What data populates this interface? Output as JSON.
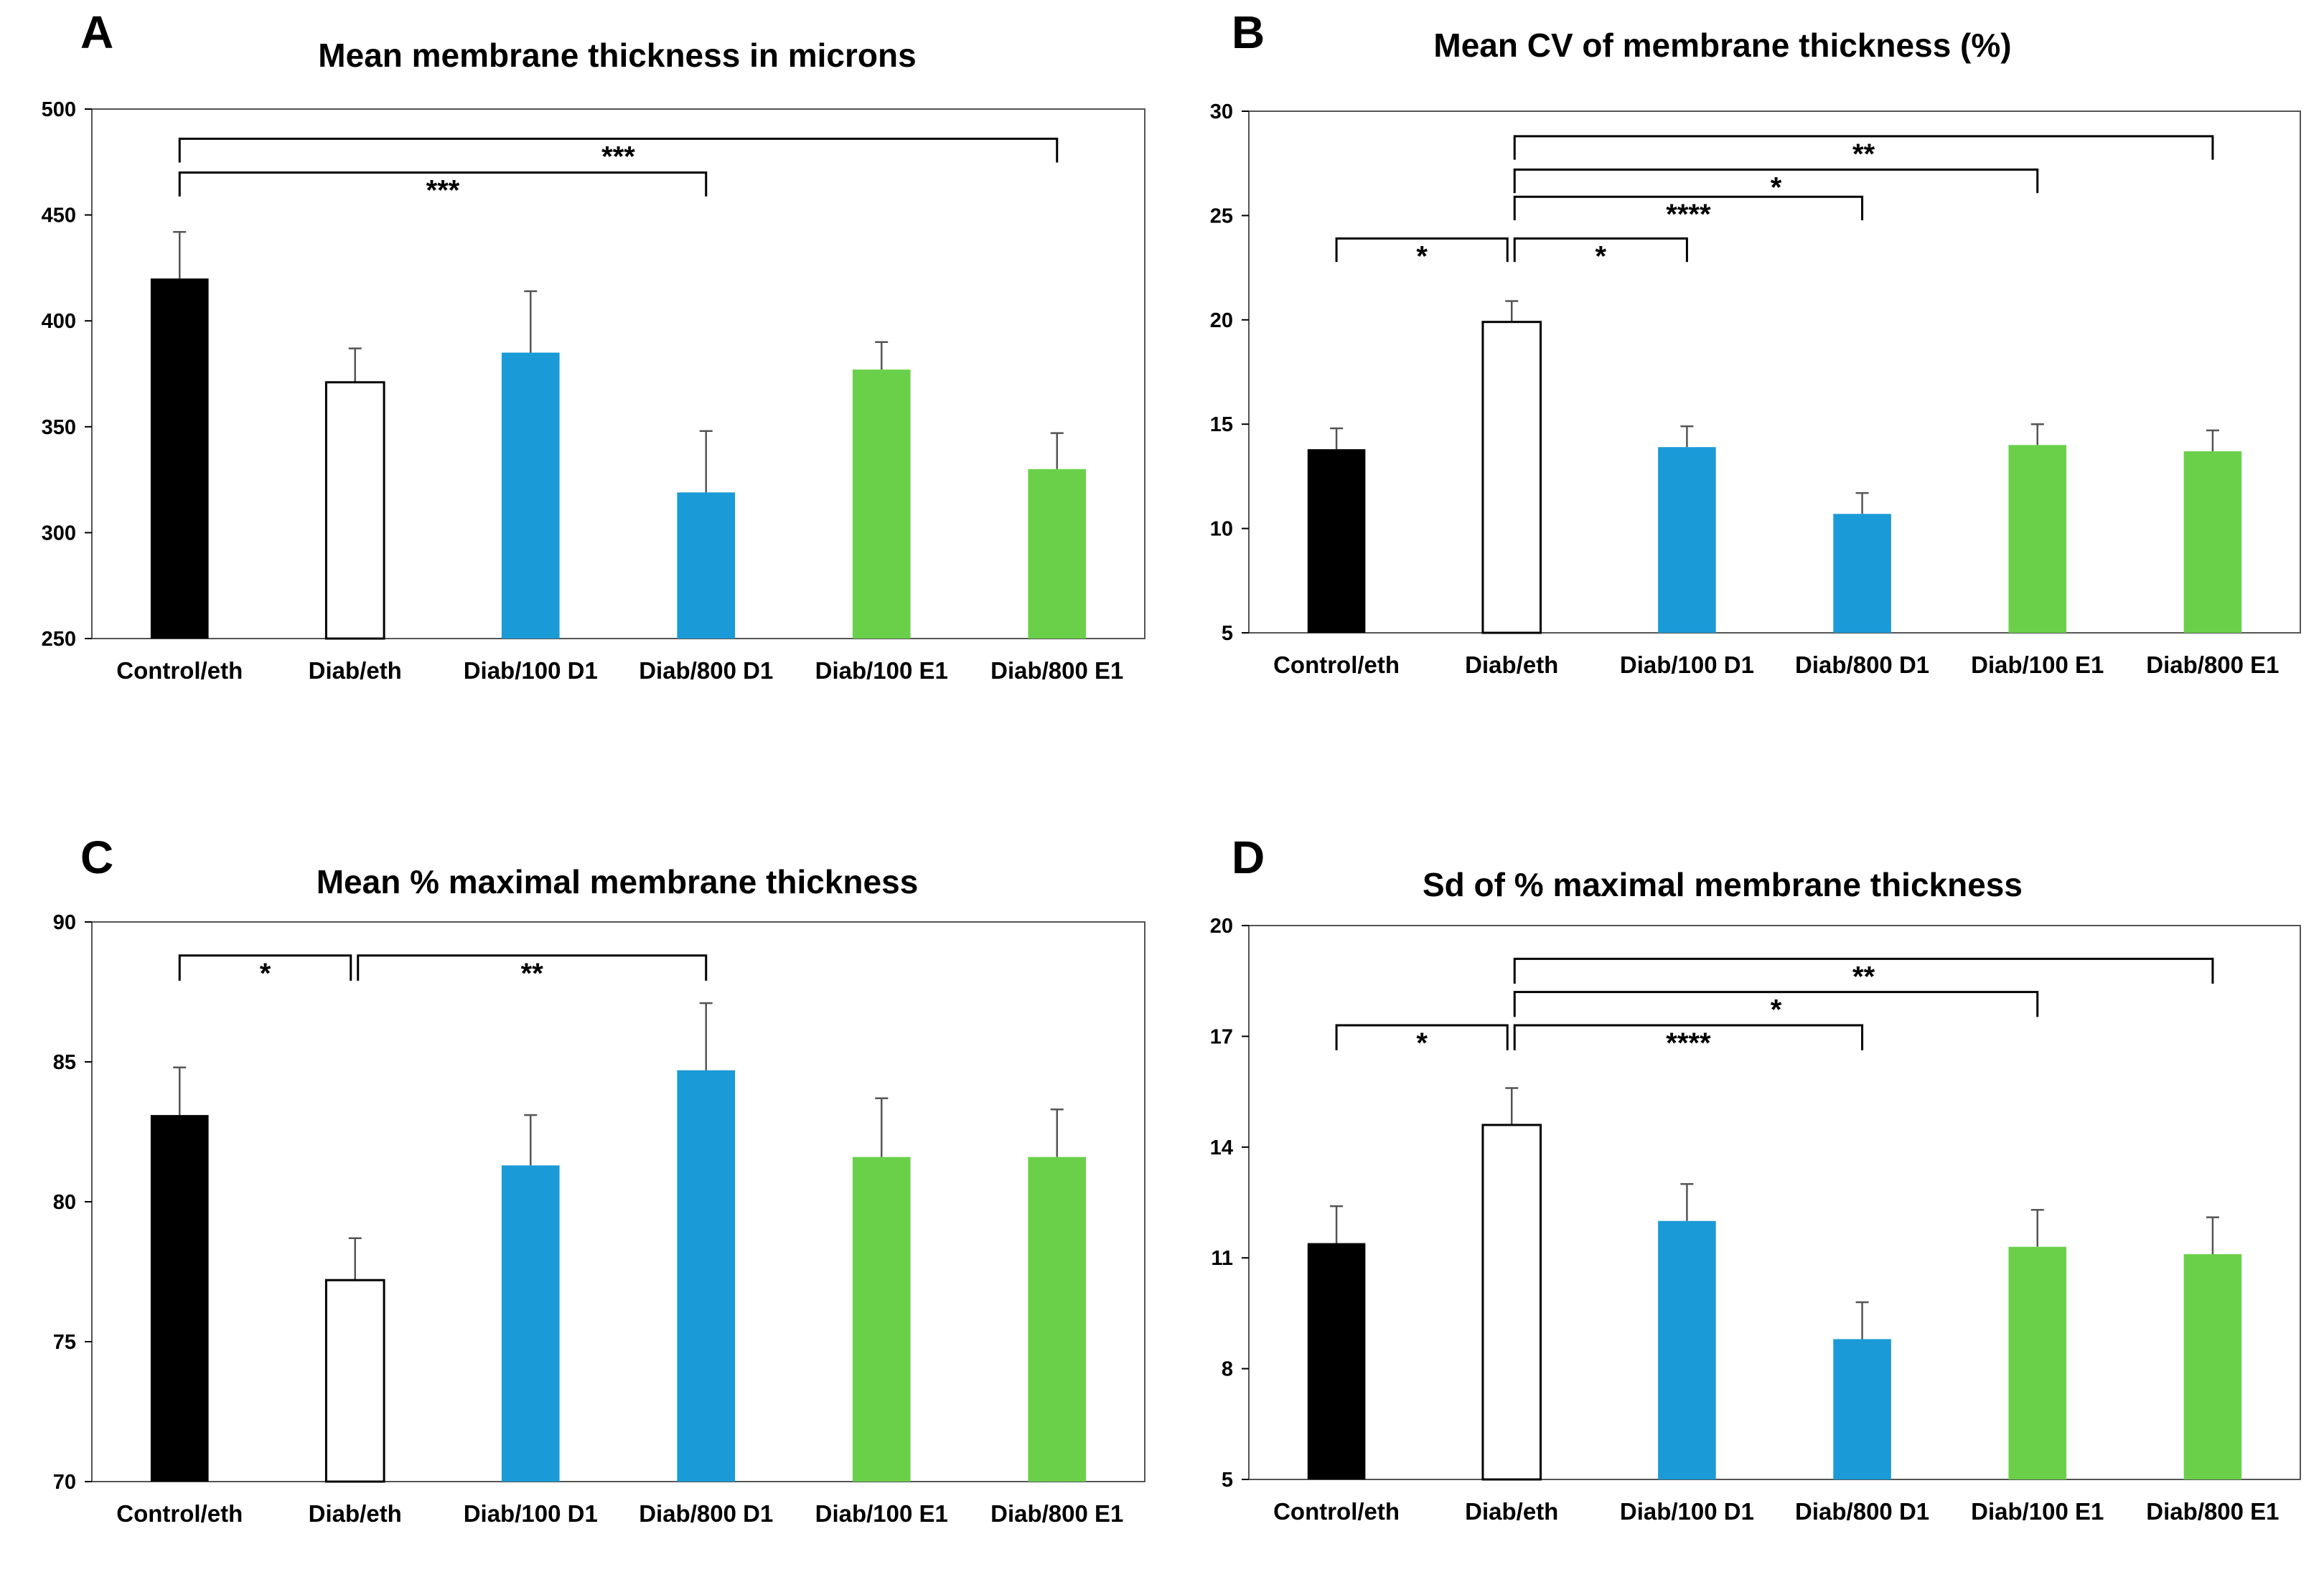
{
  "colors": {
    "control": "#000000",
    "diab": "#ffffff",
    "d1": "#1a9bd7",
    "e1": "#6ad04a",
    "axis": "#000000",
    "error_bar": "#555555"
  },
  "chart_data": [
    {
      "type": "bar",
      "panel": "A",
      "title": "Mean membrane thickness in microns",
      "categories": [
        "Control/eth",
        "Diab/eth",
        "Diab/100 D1",
        "Diab/800 D1",
        "Diab/100 E1",
        "Diab/800 E1"
      ],
      "values": [
        420,
        371,
        385,
        319,
        377,
        330
      ],
      "errors": [
        22,
        16,
        29,
        29,
        13,
        17
      ],
      "bar_colors": [
        "control",
        "diab",
        "d1",
        "d1",
        "e1",
        "e1"
      ],
      "ylim": [
        250,
        500
      ],
      "yticks": [
        250,
        300,
        350,
        400,
        450,
        500
      ],
      "xlabel": "",
      "ylabel": "",
      "significance": [
        {
          "from": 0,
          "to": 5,
          "label": "***",
          "level": 486
        },
        {
          "from": 0,
          "to": 3,
          "label": "***",
          "level": 470
        }
      ]
    },
    {
      "type": "bar",
      "panel": "B",
      "title": "Mean CV of membrane thickness (%)",
      "categories": [
        "Control/eth",
        "Diab/eth",
        "Diab/100 D1",
        "Diab/800 D1",
        "Diab/100 E1",
        "Diab/800 E1"
      ],
      "values": [
        13.8,
        19.9,
        13.9,
        10.7,
        14.0,
        13.7
      ],
      "errors": [
        1.0,
        1.0,
        1.0,
        1.0,
        1.0,
        1.0
      ],
      "bar_colors": [
        "control",
        "diab",
        "d1",
        "d1",
        "e1",
        "e1"
      ],
      "ylim": [
        5,
        30
      ],
      "yticks": [
        5,
        10,
        15,
        20,
        25,
        30
      ],
      "xlabel": "",
      "ylabel": "",
      "significance": [
        {
          "from": 1,
          "to": 5,
          "label": "**",
          "level": 28.8
        },
        {
          "from": 1,
          "to": 4,
          "label": "*",
          "level": 27.2
        },
        {
          "from": 1,
          "to": 3,
          "label": "****",
          "level": 25.9
        },
        {
          "from": 0,
          "to": 1,
          "label": "*",
          "level": 23.9
        },
        {
          "from": 1,
          "to": 2,
          "label": "*",
          "level": 23.9
        }
      ]
    },
    {
      "type": "bar",
      "panel": "C",
      "title": "Mean % maximal membrane thickness",
      "categories": [
        "Control/eth",
        "Diab/eth",
        "Diab/100 D1",
        "Diab/800 D1",
        "Diab/100 E1",
        "Diab/800 E1"
      ],
      "values": [
        83.1,
        77.2,
        81.3,
        84.7,
        81.6,
        81.6
      ],
      "errors": [
        1.7,
        1.5,
        1.8,
        2.4,
        2.1,
        1.7
      ],
      "bar_colors": [
        "control",
        "diab",
        "d1",
        "d1",
        "e1",
        "e1"
      ],
      "ylim": [
        70,
        90
      ],
      "yticks": [
        70,
        75,
        80,
        85,
        90
      ],
      "xlabel": "",
      "ylabel": "",
      "significance": [
        {
          "from": 0,
          "to": 1,
          "label": "*",
          "level": 88.8
        },
        {
          "from": 1,
          "to": 3,
          "label": "**",
          "level": 88.8
        }
      ]
    },
    {
      "type": "bar",
      "panel": "D",
      "title": "Sd of % maximal membrane thickness",
      "categories": [
        "Control/eth",
        "Diab/eth",
        "Diab/100 D1",
        "Diab/800 D1",
        "Diab/100 E1",
        "Diab/800 E1"
      ],
      "values": [
        11.4,
        14.6,
        12.0,
        8.8,
        11.3,
        11.1
      ],
      "errors": [
        1.0,
        1.0,
        1.0,
        1.0,
        1.0,
        1.0
      ],
      "bar_colors": [
        "control",
        "diab",
        "d1",
        "d1",
        "e1",
        "e1"
      ],
      "ylim": [
        5,
        20
      ],
      "yticks": [
        5,
        8,
        11,
        14,
        17,
        20
      ],
      "xlabel": "",
      "ylabel": "",
      "significance": [
        {
          "from": 1,
          "to": 5,
          "label": "**",
          "level": 19.1
        },
        {
          "from": 1,
          "to": 4,
          "label": "*",
          "level": 18.2
        },
        {
          "from": 0,
          "to": 1,
          "label": "*",
          "level": 17.3
        },
        {
          "from": 1,
          "to": 3,
          "label": "****",
          "level": 17.3
        }
      ]
    }
  ]
}
